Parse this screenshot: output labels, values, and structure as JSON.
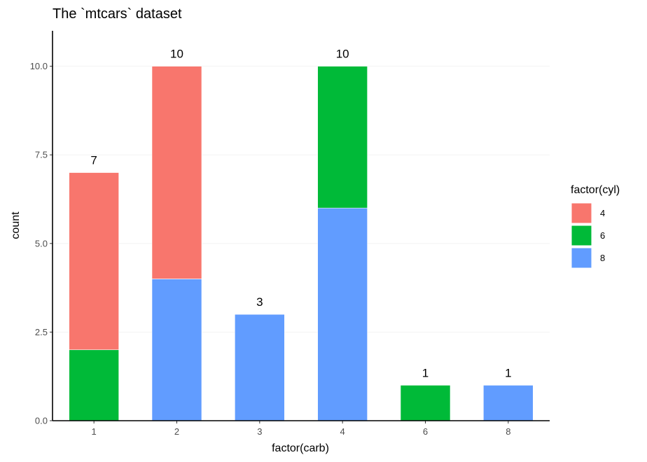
{
  "chart_data": {
    "type": "bar",
    "stacked": true,
    "title": "The `mtcars` dataset",
    "xlabel": "factor(carb)",
    "ylabel": "count",
    "categories": [
      "1",
      "2",
      "3",
      "4",
      "6",
      "8"
    ],
    "ylim": [
      0,
      11
    ],
    "yticks": [
      0,
      2.5,
      5,
      7.5,
      10
    ],
    "ytick_labels": [
      "0.0",
      "2.5",
      "5.0",
      "7.5",
      "10.0"
    ],
    "series": [
      {
        "name": "4",
        "color": "#F8766D",
        "values": [
          5,
          6,
          0,
          0,
          0,
          0
        ]
      },
      {
        "name": "6",
        "color": "#00BA38",
        "values": [
          2,
          0,
          0,
          4,
          1,
          0
        ]
      },
      {
        "name": "8",
        "color": "#619CFF",
        "values": [
          0,
          4,
          3,
          6,
          0,
          1
        ]
      }
    ],
    "stack_order_bottom_to_top": [
      "8",
      "6",
      "4"
    ],
    "totals": [
      7,
      10,
      3,
      10,
      1,
      1
    ],
    "legend": {
      "title": "factor(cyl)",
      "position": "right"
    },
    "grid": {
      "major_y": true,
      "major_x": false
    }
  }
}
